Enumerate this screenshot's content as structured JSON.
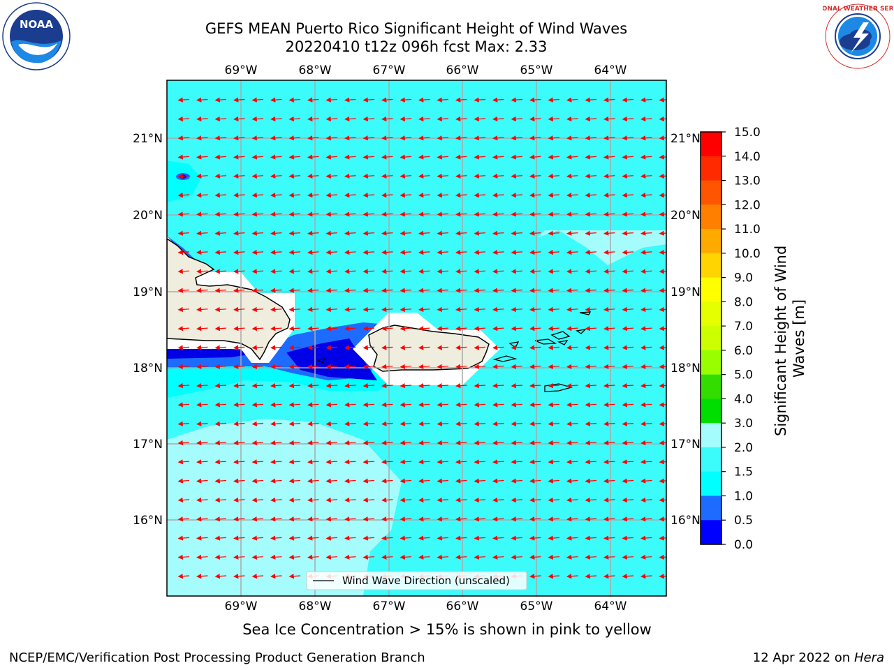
{
  "header": {
    "title_line1": "GEFS MEAN Puerto Rico Significant Height of Wind Waves",
    "title_line2": "20220410 t12z 096h fcst   Max: 2.33"
  },
  "logos": {
    "left": {
      "text": "NOAA",
      "icon": "noaa-logo"
    },
    "right": {
      "text": "NATIONAL WEATHER SERVICE",
      "icon": "nws-logo"
    }
  },
  "map": {
    "lon_labels": [
      "69°W",
      "68°W",
      "67°W",
      "66°W",
      "65°W",
      "64°W"
    ],
    "lat_labels": [
      "21°N",
      "20°N",
      "19°N",
      "18°N",
      "17°N",
      "16°N"
    ],
    "legend_label": "Wind Wave Direction (unscaled)",
    "colors": {
      "ocean_main": "#3cfbfb",
      "ocean_light": "#a5fcfc",
      "ocean_mid": "#00ffff",
      "ocean_blue": "#1e6bff",
      "ocean_dark": "#0000e6",
      "land": "#efedde",
      "arrow": "#ff0000"
    }
  },
  "colorbar": {
    "label": "Significant Height of Wind Waves [m]",
    "ticks": [
      "15.0",
      "14.0",
      "13.0",
      "12.0",
      "11.0",
      "10.0",
      "9.0",
      "8.0",
      "7.0",
      "6.0",
      "5.0",
      "4.0",
      "3.0",
      "2.0",
      "1.5",
      "1.0",
      "0.5",
      "0.0"
    ],
    "colors": [
      "#ff0000",
      "#ff2a00",
      "#ff5500",
      "#ff8000",
      "#ffaa00",
      "#ffd400",
      "#ffff00",
      "#e6ff00",
      "#ccff00",
      "#99ff00",
      "#33dd00",
      "#00dd00",
      "#44ee88",
      "#a5fcfc",
      "#3cfbfb",
      "#00ffff",
      "#1e6bff",
      "#0000ff"
    ]
  },
  "notes": {
    "sea_ice": "Sea Ice Concentration > 15% is shown in pink to yellow"
  },
  "footer": {
    "left": "NCEP/EMC/Verification Post Processing Product Generation Branch",
    "right_date": "12 Apr 2022 on ",
    "right_host": "Hera"
  }
}
